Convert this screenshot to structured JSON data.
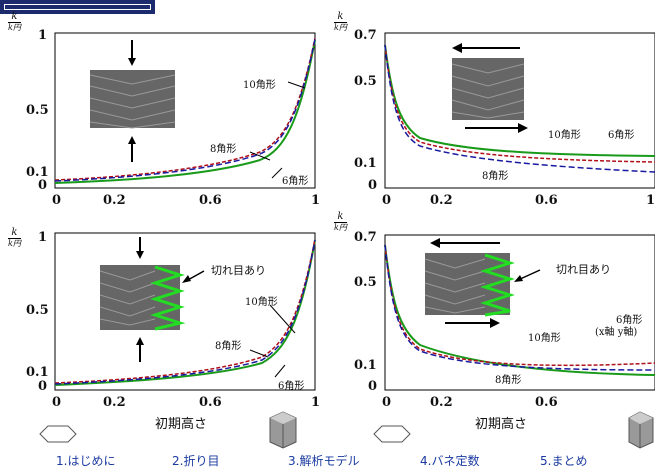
{
  "y_label": {
    "num": "k",
    "den": "k円"
  },
  "x_axis_title": "初期高さ",
  "panels": [
    {
      "ticks_x": [
        "0",
        "0.2",
        "0.6",
        "1"
      ],
      "ticks_y": [
        "1",
        "0.5",
        "0.1",
        "0"
      ],
      "labels": {
        "a": "10角形",
        "b": "8角形",
        "c": "6角形"
      }
    },
    {
      "ticks_x": [
        "0",
        "0.2",
        "0.6",
        "1"
      ],
      "ticks_y": [
        "0.7",
        "0.5",
        "0.1",
        "0"
      ],
      "labels": {
        "a": "10角形",
        "b": "6角形",
        "c": "8角形"
      }
    },
    {
      "ticks_x": [
        "0",
        "0.2",
        "0.6",
        "1"
      ],
      "ticks_y": [
        "1",
        "0.5",
        "0.1",
        "0"
      ],
      "labels": {
        "a": "10角形",
        "b": "8角形",
        "c": "6角形"
      },
      "note": "切れ目あり"
    },
    {
      "ticks_x": [
        "0",
        "0.2",
        "0.6",
        "1"
      ],
      "ticks_y": [
        "0.7",
        "0.5",
        "0.1",
        "0"
      ],
      "labels": {
        "a": "10角形",
        "b": "6角形",
        "c": "8角形"
      },
      "note": "切れ目あり",
      "note2": "(x軸 y軸)"
    }
  ],
  "nav": [
    {
      "label": "1.はじめに"
    },
    {
      "label": "2.折り目"
    },
    {
      "label": "3.解析モデル"
    },
    {
      "label": "4.バネ定数"
    },
    {
      "label": "5.まとめ"
    }
  ],
  "colors": {
    "green": "#1a9a1a",
    "red": "#b0101a",
    "blue": "#1a1aa0",
    "accent": "#1c2a6e",
    "link": "#1a3aa0"
  }
}
